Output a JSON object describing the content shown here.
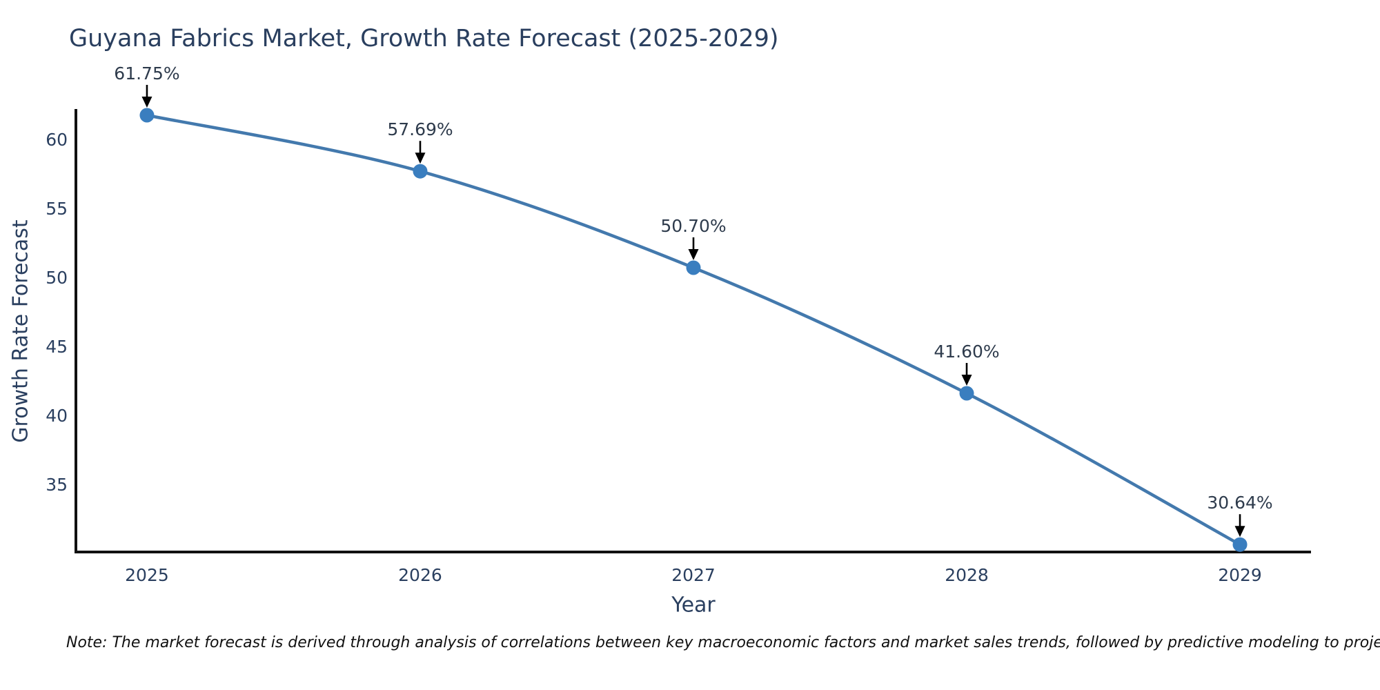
{
  "page": {
    "background": "#ffffff"
  },
  "note": "Note: The market forecast is derived through analysis of correlations between key macroeconomic factors and market sales trends, followed by predictive modeling to project future sales",
  "chart_data": {
    "type": "line",
    "title": "Guyana Fabrics Market, Growth Rate Forecast (2025-2029)",
    "xlabel": "Year",
    "ylabel": "Growth Rate Forecast",
    "x": [
      2025,
      2026,
      2027,
      2028,
      2029
    ],
    "series": [
      {
        "name": "Growth Rate Forecast",
        "values": [
          61.75,
          57.69,
          50.7,
          41.6,
          30.64
        ]
      }
    ],
    "point_labels": [
      "61.75%",
      "57.69%",
      "50.70%",
      "41.60%",
      "30.64%"
    ],
    "xticks": [
      "2025",
      "2026",
      "2027",
      "2028",
      "2029"
    ],
    "yticks": [
      35,
      40,
      45,
      50,
      55,
      60
    ],
    "xlim": [
      2024.74,
      2029.26
    ],
    "ylim": [
      30.1,
      62.2
    ],
    "grid": false,
    "legend": false,
    "line_shape": "spline",
    "marker_style": "circle",
    "annotations_have_arrows": true,
    "colors": {
      "line": "#4379ad",
      "marker": "#3a7ebf",
      "annotation_text": "#2e3b4c",
      "annotation_arrow": "#000000",
      "axis_line": "#111111",
      "tick_label": "#2a3f5f",
      "axis_title": "#2a3f5f",
      "title": "#2a3f5f"
    }
  }
}
